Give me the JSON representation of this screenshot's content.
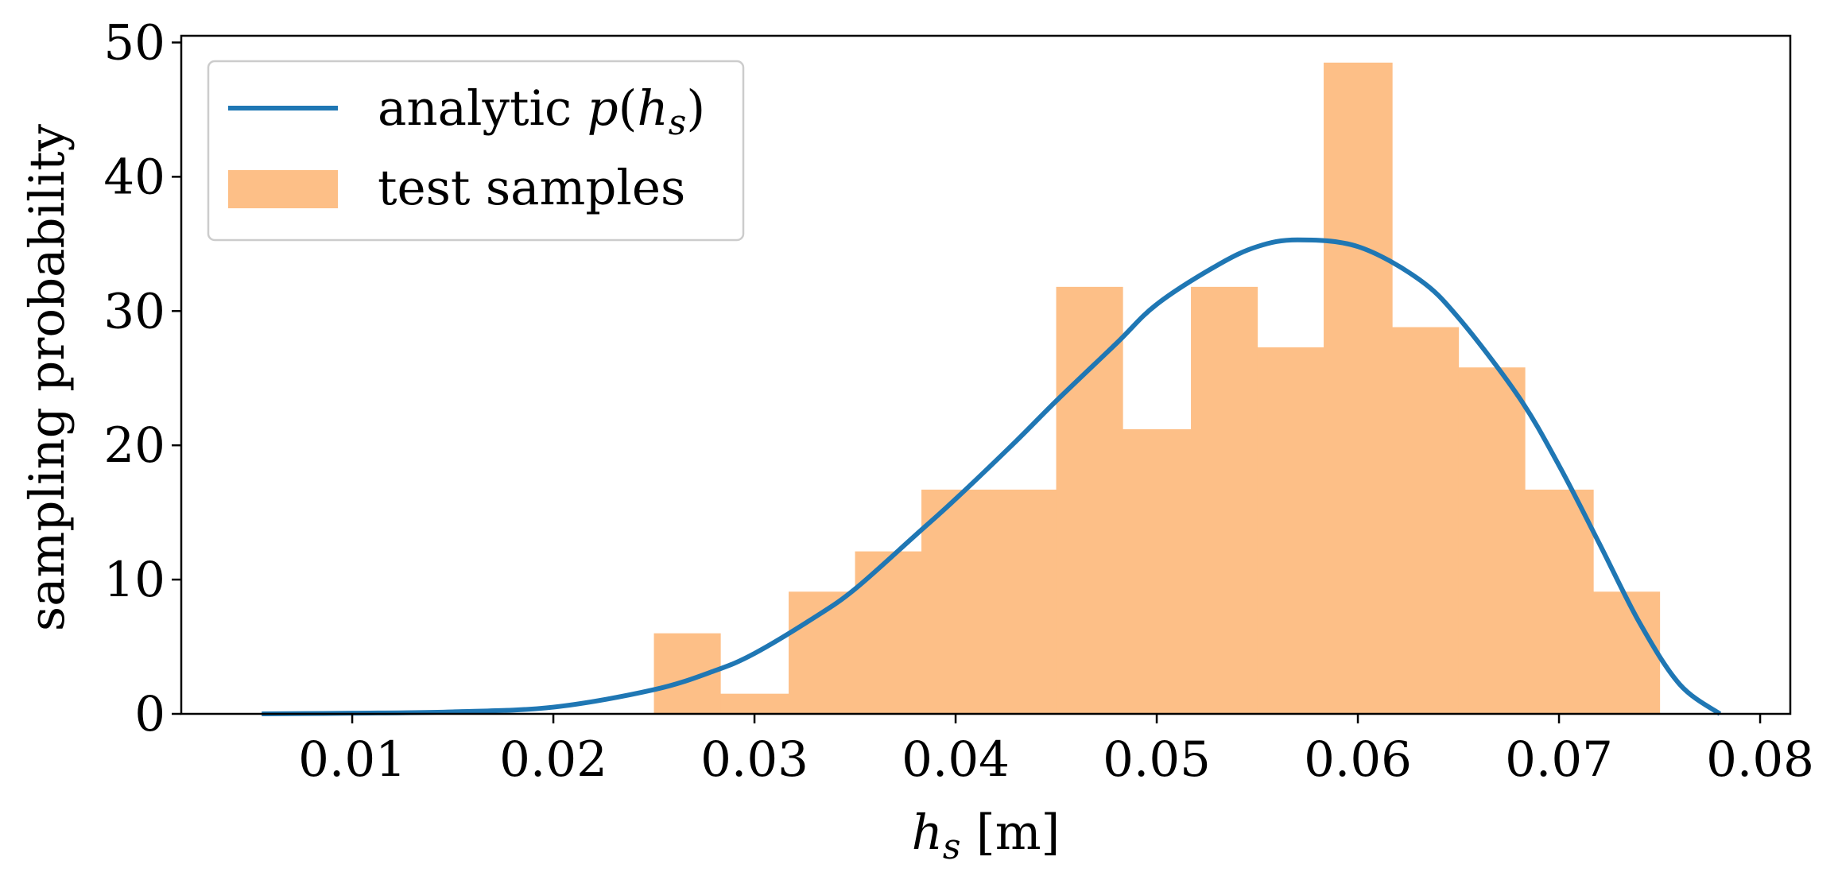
{
  "chart_data": {
    "type": "bar",
    "xlabel": {
      "var": "h",
      "sub": "s",
      "unit": " [m]"
    },
    "ylabel": "sampling probability",
    "xlim": [
      0.0015,
      0.0815
    ],
    "ylim": [
      0,
      50.5
    ],
    "xticks": [
      0.01,
      0.02,
      0.03,
      0.04,
      0.05,
      0.06,
      0.07,
      0.08
    ],
    "xtick_labels": [
      "0.01",
      "0.02",
      "0.03",
      "0.04",
      "0.05",
      "0.06",
      "0.07",
      "0.08"
    ],
    "yticks": [
      0,
      10,
      20,
      30,
      40,
      50
    ],
    "ytick_labels": [
      "0",
      "10",
      "20",
      "30",
      "40",
      "50"
    ],
    "grid": false,
    "legend_position": "top-left",
    "legend": [
      {
        "label": "analytic ",
        "math": {
          "f": "p",
          "var": "h",
          "sub": "s"
        },
        "kind": "line",
        "color": "#1f77b4"
      },
      {
        "label": "test samples",
        "kind": "patch",
        "color": "#fdbf87"
      }
    ],
    "histogram": {
      "name": "test samples",
      "color": "#fdbf87",
      "bin_edges": [
        0.025,
        0.0283,
        0.0317,
        0.035,
        0.0383,
        0.0417,
        0.045,
        0.0483,
        0.0517,
        0.055,
        0.0583,
        0.0617,
        0.065,
        0.0683,
        0.0717,
        0.075
      ],
      "values": [
        6.0,
        1.5,
        9.1,
        12.1,
        16.7,
        16.7,
        31.8,
        21.2,
        31.8,
        27.3,
        48.5,
        28.8,
        25.8,
        16.7,
        9.1
      ]
    },
    "curve": {
      "name": "analytic p(h_s)",
      "color": "#1f77b4",
      "x": [
        0.0055,
        0.01,
        0.015,
        0.02,
        0.025,
        0.028,
        0.03,
        0.033,
        0.035,
        0.038,
        0.04,
        0.043,
        0.045,
        0.048,
        0.05,
        0.053,
        0.055,
        0.057,
        0.06,
        0.063,
        0.065,
        0.068,
        0.07,
        0.072,
        0.074,
        0.076,
        0.078
      ],
      "y": [
        0.0,
        0.05,
        0.15,
        0.5,
        1.8,
        3.2,
        4.5,
        7.2,
        9.3,
        13.3,
        16.0,
        20.3,
        23.3,
        27.6,
        30.5,
        33.4,
        34.8,
        35.3,
        34.8,
        32.4,
        29.5,
        23.6,
        18.5,
        12.7,
        6.8,
        2.2,
        0.0
      ]
    }
  }
}
